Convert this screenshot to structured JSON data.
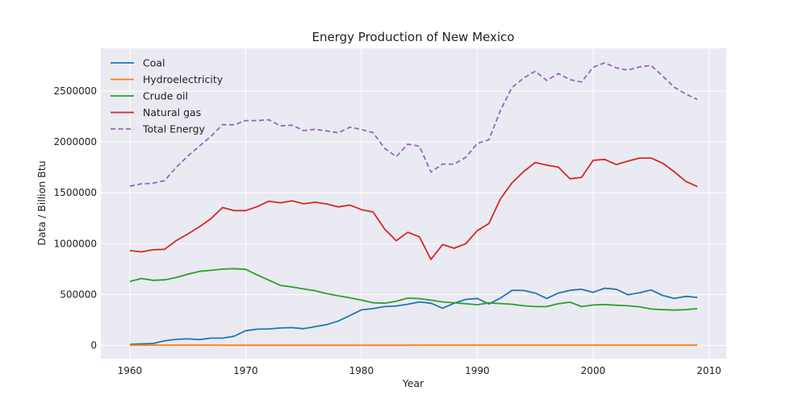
{
  "chart_data": {
    "type": "line",
    "title": "Energy Production of New Mexico",
    "xlabel": "Year",
    "ylabel": "Data / Billion Btu",
    "xlim": [
      1957.5,
      2011.5
    ],
    "ylim": [
      -130000,
      2920000
    ],
    "x_ticks": [
      1960,
      1970,
      1980,
      1990,
      2000,
      2010
    ],
    "y_ticks": [
      0,
      500000,
      1000000,
      1500000,
      2000000,
      2500000
    ],
    "grid": true,
    "legend_position": "top-left",
    "x": [
      1960,
      1961,
      1962,
      1963,
      1964,
      1965,
      1966,
      1967,
      1968,
      1969,
      1970,
      1971,
      1972,
      1973,
      1974,
      1975,
      1976,
      1977,
      1978,
      1979,
      1980,
      1981,
      1982,
      1983,
      1984,
      1985,
      1986,
      1987,
      1988,
      1989,
      1990,
      1991,
      1992,
      1993,
      1994,
      1995,
      1996,
      1997,
      1998,
      1999,
      2000,
      2001,
      2002,
      2003,
      2004,
      2005,
      2006,
      2007,
      2008,
      2009
    ],
    "series": [
      {
        "name": "Coal",
        "color": "#1f77b4",
        "dashed": false,
        "values": [
          10000,
          15000,
          20000,
          45000,
          60000,
          65000,
          58000,
          72000,
          72000,
          90000,
          145000,
          160000,
          162000,
          172000,
          175000,
          165000,
          185000,
          205000,
          240000,
          295000,
          350000,
          362000,
          382000,
          388000,
          405000,
          428000,
          415000,
          366000,
          415000,
          452000,
          462000,
          408000,
          465000,
          542000,
          540000,
          515000,
          462000,
          515000,
          542000,
          552000,
          522000,
          562000,
          552000,
          498000,
          518000,
          545000,
          492000,
          462000,
          482000,
          472000
        ]
      },
      {
        "name": "Hydroelectricity",
        "color": "#ff7f0e",
        "dashed": false,
        "values": [
          2000,
          3000,
          3000,
          3000,
          3000,
          3000,
          3000,
          3000,
          2000,
          2000,
          2000,
          2000,
          2000,
          2000,
          2000,
          2000,
          2000,
          2000,
          2000,
          2000,
          2000,
          2000,
          2000,
          2000,
          2000,
          3000,
          3000,
          3000,
          3000,
          3000,
          3000,
          3000,
          3000,
          3000,
          3000,
          3000,
          3000,
          3000,
          3000,
          3000,
          3000,
          3000,
          3000,
          3000,
          3000,
          3000,
          3000,
          3000,
          3000,
          3000
        ]
      },
      {
        "name": "Crude oil",
        "color": "#2ca02c",
        "dashed": false,
        "values": [
          628000,
          658000,
          640000,
          645000,
          668000,
          700000,
          728000,
          738000,
          750000,
          755000,
          748000,
          692000,
          642000,
          590000,
          575000,
          555000,
          538000,
          510000,
          488000,
          468000,
          445000,
          420000,
          415000,
          435000,
          465000,
          460000,
          445000,
          428000,
          420000,
          410000,
          400000,
          418000,
          412000,
          405000,
          390000,
          382000,
          382000,
          410000,
          425000,
          382000,
          398000,
          402000,
          395000,
          390000,
          380000,
          358000,
          352000,
          348000,
          352000,
          362000
        ]
      },
      {
        "name": "Natural gas",
        "color": "#d62728",
        "dashed": false,
        "values": [
          932000,
          920000,
          940000,
          945000,
          1030000,
          1095000,
          1165000,
          1245000,
          1355000,
          1325000,
          1325000,
          1365000,
          1418000,
          1402000,
          1422000,
          1393000,
          1408000,
          1390000,
          1362000,
          1380000,
          1335000,
          1312000,
          1145000,
          1030000,
          1112000,
          1068000,
          845000,
          992000,
          955000,
          1000000,
          1128000,
          1198000,
          1440000,
          1598000,
          1708000,
          1798000,
          1772000,
          1752000,
          1638000,
          1652000,
          1820000,
          1828000,
          1778000,
          1812000,
          1842000,
          1842000,
          1792000,
          1708000,
          1612000,
          1562000
        ]
      },
      {
        "name": "Total Energy",
        "color": "#9467bd",
        "dashed": true,
        "values": [
          1565000,
          1588000,
          1595000,
          1620000,
          1750000,
          1860000,
          1958000,
          2055000,
          2170000,
          2168000,
          2210000,
          2210000,
          2218000,
          2158000,
          2165000,
          2112000,
          2125000,
          2108000,
          2090000,
          2145000,
          2122000,
          2092000,
          1938000,
          1855000,
          1978000,
          1958000,
          1705000,
          1782000,
          1782000,
          1848000,
          1985000,
          2022000,
          2310000,
          2535000,
          2628000,
          2695000,
          2605000,
          2672000,
          2612000,
          2590000,
          2735000,
          2778000,
          2728000,
          2705000,
          2738000,
          2752000,
          2648000,
          2538000,
          2472000,
          2418000
        ]
      }
    ]
  }
}
